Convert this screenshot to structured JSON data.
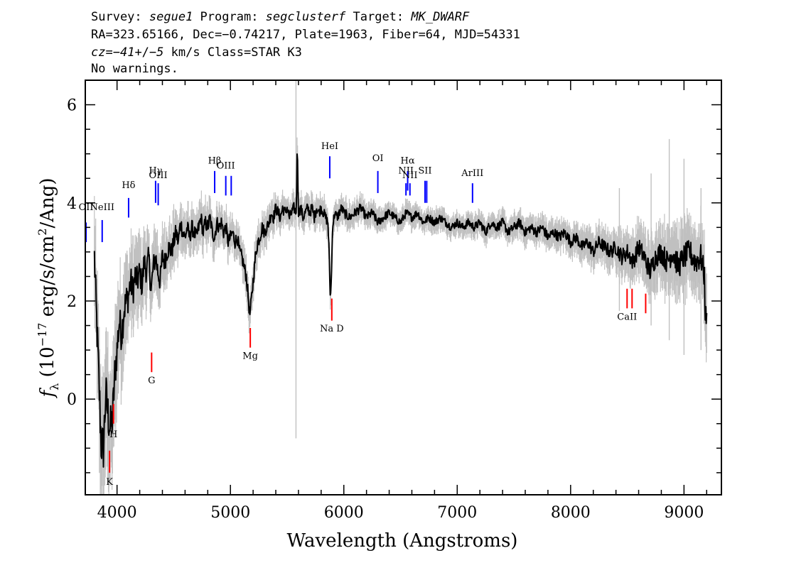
{
  "header": {
    "line1": [
      {
        "t": "Survey: ",
        "i": false
      },
      {
        "t": "segue1",
        "i": true
      },
      {
        "t": " Program: ",
        "i": false
      },
      {
        "t": "segclusterf",
        "i": true
      },
      {
        "t": " Target: ",
        "i": false
      },
      {
        "t": "MK_DWARF",
        "i": true
      }
    ],
    "line2": "RA=323.65166, Dec=−0.74217, Plate=1963, Fiber=64, MJD=54331",
    "line3": [
      {
        "t": "cz=",
        "i": true
      },
      {
        "t": "−41",
        "i": true
      },
      {
        "t": "+/−",
        "i": false
      },
      {
        "t": "5",
        "i": true
      },
      {
        "t": " km/s Class=STAR K3",
        "i": false
      }
    ],
    "line4": "No warnings."
  },
  "chart_data": {
    "type": "line",
    "xlabel": "Wavelength (Angstroms)",
    "ylabel": "f_λ (10^-17 erg/s/cm^2/Ang)",
    "xlim": [
      3720,
      9330
    ],
    "ylim": [
      -1.95,
      6.5
    ],
    "xticks": [
      4000,
      5000,
      6000,
      7000,
      8000,
      9000
    ],
    "yticks": [
      0,
      2,
      4,
      6
    ],
    "colors": {
      "flux": "#000000",
      "error_band": "#c0c0c0",
      "emission": "#0000ff",
      "absorption": "#ff0000"
    },
    "series": [
      {
        "role": "flux",
        "points": [
          [
            3800,
            2.9
          ],
          [
            3820,
            1.6
          ],
          [
            3840,
            0.4
          ],
          [
            3860,
            -0.9
          ],
          [
            3880,
            -1.0
          ],
          [
            3900,
            0.1
          ],
          [
            3920,
            -0.3
          ],
          [
            3940,
            -0.6
          ],
          [
            3960,
            -0.4
          ],
          [
            3980,
            0.5
          ],
          [
            4000,
            1.0
          ],
          [
            4020,
            1.6
          ],
          [
            4040,
            1.3
          ],
          [
            4060,
            1.8
          ],
          [
            4080,
            2.0
          ],
          [
            4100,
            2.1
          ],
          [
            4120,
            2.4
          ],
          [
            4140,
            2.2
          ],
          [
            4160,
            2.5
          ],
          [
            4180,
            2.4
          ],
          [
            4200,
            2.6
          ],
          [
            4220,
            2.3
          ],
          [
            4240,
            2.8
          ],
          [
            4260,
            2.6
          ],
          [
            4280,
            2.9
          ],
          [
            4300,
            2.2
          ],
          [
            4320,
            2.7
          ],
          [
            4340,
            2.9
          ],
          [
            4360,
            2.6
          ],
          [
            4380,
            2.4
          ],
          [
            4400,
            2.9
          ],
          [
            4420,
            2.8
          ],
          [
            4440,
            3.0
          ],
          [
            4460,
            3.1
          ],
          [
            4480,
            3.0
          ],
          [
            4500,
            3.2
          ],
          [
            4520,
            3.4
          ],
          [
            4540,
            3.2
          ],
          [
            4560,
            3.6
          ],
          [
            4580,
            3.4
          ],
          [
            4600,
            3.3
          ],
          [
            4620,
            3.5
          ],
          [
            4640,
            3.3
          ],
          [
            4660,
            3.5
          ],
          [
            4680,
            3.4
          ],
          [
            4700,
            3.3
          ],
          [
            4720,
            3.5
          ],
          [
            4740,
            3.7
          ],
          [
            4760,
            3.4
          ],
          [
            4780,
            3.6
          ],
          [
            4800,
            3.5
          ],
          [
            4820,
            3.7
          ],
          [
            4840,
            3.4
          ],
          [
            4860,
            3.3
          ],
          [
            4880,
            3.6
          ],
          [
            4900,
            3.5
          ],
          [
            4920,
            3.6
          ],
          [
            4940,
            3.4
          ],
          [
            4960,
            3.5
          ],
          [
            4980,
            3.2
          ],
          [
            5000,
            3.3
          ],
          [
            5020,
            3.4
          ],
          [
            5040,
            3.2
          ],
          [
            5060,
            3.3
          ],
          [
            5080,
            3.0
          ],
          [
            5100,
            2.9
          ],
          [
            5120,
            2.7
          ],
          [
            5140,
            2.5
          ],
          [
            5160,
            2.0
          ],
          [
            5170,
            1.7
          ],
          [
            5180,
            1.9
          ],
          [
            5200,
            2.4
          ],
          [
            5220,
            2.9
          ],
          [
            5240,
            3.2
          ],
          [
            5260,
            3.3
          ],
          [
            5280,
            3.5
          ],
          [
            5300,
            3.4
          ],
          [
            5320,
            3.5
          ],
          [
            5340,
            3.6
          ],
          [
            5360,
            3.8
          ],
          [
            5380,
            3.7
          ],
          [
            5400,
            3.9
          ],
          [
            5420,
            3.8
          ],
          [
            5440,
            3.7
          ],
          [
            5460,
            3.9
          ],
          [
            5480,
            3.8
          ],
          [
            5500,
            3.9
          ],
          [
            5520,
            3.7
          ],
          [
            5540,
            3.8
          ],
          [
            5560,
            3.9
          ],
          [
            5580,
            3.8
          ],
          [
            5590,
            5.2
          ],
          [
            5600,
            3.8
          ],
          [
            5620,
            3.9
          ],
          [
            5640,
            3.7
          ],
          [
            5660,
            3.8
          ],
          [
            5680,
            3.9
          ],
          [
            5700,
            3.8
          ],
          [
            5720,
            3.9
          ],
          [
            5740,
            3.7
          ],
          [
            5760,
            3.9
          ],
          [
            5780,
            3.8
          ],
          [
            5800,
            3.9
          ],
          [
            5820,
            3.8
          ],
          [
            5840,
            3.7
          ],
          [
            5860,
            3.6
          ],
          [
            5870,
            3.0
          ],
          [
            5880,
            2.1
          ],
          [
            5890,
            2.4
          ],
          [
            5900,
            3.5
          ],
          [
            5920,
            3.8
          ],
          [
            5940,
            3.7
          ],
          [
            5960,
            3.8
          ],
          [
            5980,
            3.9
          ],
          [
            6000,
            3.8
          ],
          [
            6050,
            3.7
          ],
          [
            6100,
            3.8
          ],
          [
            6150,
            3.9
          ],
          [
            6200,
            3.7
          ],
          [
            6250,
            3.8
          ],
          [
            6300,
            3.6
          ],
          [
            6350,
            3.7
          ],
          [
            6400,
            3.8
          ],
          [
            6450,
            3.7
          ],
          [
            6500,
            3.6
          ],
          [
            6550,
            3.8
          ],
          [
            6600,
            3.7
          ],
          [
            6650,
            3.8
          ],
          [
            6700,
            3.6
          ],
          [
            6750,
            3.7
          ],
          [
            6800,
            3.6
          ],
          [
            6850,
            3.7
          ],
          [
            6900,
            3.6
          ],
          [
            6950,
            3.5
          ],
          [
            7000,
            3.6
          ],
          [
            7050,
            3.5
          ],
          [
            7100,
            3.6
          ],
          [
            7150,
            3.5
          ],
          [
            7200,
            3.6
          ],
          [
            7250,
            3.4
          ],
          [
            7300,
            3.6
          ],
          [
            7350,
            3.5
          ],
          [
            7400,
            3.6
          ],
          [
            7450,
            3.4
          ],
          [
            7500,
            3.5
          ],
          [
            7550,
            3.6
          ],
          [
            7600,
            3.4
          ],
          [
            7650,
            3.5
          ],
          [
            7700,
            3.4
          ],
          [
            7750,
            3.5
          ],
          [
            7800,
            3.3
          ],
          [
            7850,
            3.4
          ],
          [
            7900,
            3.3
          ],
          [
            7950,
            3.4
          ],
          [
            8000,
            3.2
          ],
          [
            8050,
            3.3
          ],
          [
            8100,
            3.1
          ],
          [
            8150,
            3.2
          ],
          [
            8200,
            3.0
          ],
          [
            8250,
            3.2
          ],
          [
            8300,
            3.1
          ],
          [
            8350,
            3.0
          ],
          [
            8400,
            3.1
          ],
          [
            8450,
            2.9
          ],
          [
            8500,
            3.0
          ],
          [
            8550,
            2.8
          ],
          [
            8600,
            3.1
          ],
          [
            8650,
            2.9
          ],
          [
            8700,
            2.6
          ],
          [
            8750,
            2.9
          ],
          [
            8800,
            3.0
          ],
          [
            8850,
            2.8
          ],
          [
            8900,
            3.0
          ],
          [
            8950,
            2.7
          ],
          [
            9000,
            2.9
          ],
          [
            9050,
            3.0
          ],
          [
            9100,
            2.8
          ],
          [
            9150,
            2.9
          ],
          [
            9180,
            2.5
          ],
          [
            9190,
            1.6
          ],
          [
            9200,
            1.8
          ]
        ]
      },
      {
        "role": "error_band",
        "points": [
          [
            3800,
            0.7
          ],
          [
            3850,
            0.9
          ],
          [
            3900,
            0.9
          ],
          [
            3950,
            0.8
          ],
          [
            4000,
            0.7
          ],
          [
            4100,
            0.6
          ],
          [
            4200,
            0.5
          ],
          [
            4300,
            0.45
          ],
          [
            4400,
            0.4
          ],
          [
            4500,
            0.35
          ],
          [
            4600,
            0.3
          ],
          [
            4800,
            0.28
          ],
          [
            5000,
            0.25
          ],
          [
            5200,
            0.25
          ],
          [
            5400,
            0.22
          ],
          [
            5600,
            0.2
          ],
          [
            5800,
            0.2
          ],
          [
            6000,
            0.18
          ],
          [
            6500,
            0.15
          ],
          [
            7000,
            0.15
          ],
          [
            7500,
            0.17
          ],
          [
            8000,
            0.2
          ],
          [
            8300,
            0.25
          ],
          [
            8600,
            0.35
          ],
          [
            8900,
            0.45
          ],
          [
            9200,
            0.5
          ]
        ]
      }
    ],
    "spikes": [
      [
        5578,
        -0.8,
        6.5
      ],
      [
        8870,
        1.2,
        5.3
      ],
      [
        9000,
        0.9,
        4.9
      ],
      [
        8710,
        1.5,
        4.6
      ],
      [
        8430,
        1.8,
        4.3
      ],
      [
        9150,
        1.0,
        4.3
      ]
    ],
    "lines": [
      {
        "label": "OII",
        "x": 3727,
        "y0": 3.2,
        "y1": 3.6,
        "ly": 3.85,
        "kind": "emission"
      },
      {
        "label": "NeIII",
        "x": 3869,
        "y0": 3.2,
        "y1": 3.65,
        "ly": 3.85,
        "kind": "emission"
      },
      {
        "label": "Hδ",
        "x": 4102,
        "y0": 3.7,
        "y1": 4.1,
        "ly": 4.3,
        "kind": "emission"
      },
      {
        "label": "Hγ",
        "x": 4340,
        "y0": 4.0,
        "y1": 4.45,
        "ly": 4.6,
        "kind": "emission"
      },
      {
        "label": "OIII",
        "x": 4363,
        "y0": 3.95,
        "y1": 4.4,
        "ly": 4.5,
        "kind": "emission"
      },
      {
        "label": "Hβ",
        "x": 4861,
        "y0": 4.2,
        "y1": 4.65,
        "ly": 4.8,
        "kind": "emission"
      },
      {
        "label": "OIII",
        "x": 4959,
        "y0": 4.15,
        "y1": 4.55,
        "ly": 4.7,
        "kind": "emission"
      },
      {
        "label": "",
        "x": 5007,
        "y0": 4.15,
        "y1": 4.55,
        "ly": 4.7,
        "kind": "emission"
      },
      {
        "label": "HeI",
        "x": 5876,
        "y0": 4.5,
        "y1": 4.95,
        "ly": 5.1,
        "kind": "emission"
      },
      {
        "label": "OI",
        "x": 6300,
        "y0": 4.2,
        "y1": 4.65,
        "ly": 4.85,
        "kind": "emission"
      },
      {
        "label": "NII",
        "x": 6548,
        "y0": 4.15,
        "y1": 4.4,
        "ly": 4.6,
        "kind": "emission"
      },
      {
        "label": "Hα",
        "x": 6563,
        "y0": 4.25,
        "y1": 4.65,
        "ly": 4.8,
        "kind": "emission"
      },
      {
        "label": "NII",
        "x": 6583,
        "y0": 4.15,
        "y1": 4.4,
        "ly": 4.5,
        "kind": "emission"
      },
      {
        "label": "SII",
        "x": 6716,
        "y0": 4.0,
        "y1": 4.45,
        "ly": 4.6,
        "kind": "emission"
      },
      {
        "label": "",
        "x": 6731,
        "y0": 4.0,
        "y1": 4.45,
        "ly": 4.6,
        "kind": "emission"
      },
      {
        "label": "ArIII",
        "x": 7135,
        "y0": 4.0,
        "y1": 4.4,
        "ly": 4.55,
        "kind": "emission"
      },
      {
        "label": "K",
        "x": 3934,
        "y0": -1.5,
        "y1": -1.05,
        "ly": -1.75,
        "kind": "absorption"
      },
      {
        "label": "H",
        "x": 3969,
        "y0": -0.5,
        "y1": -0.1,
        "ly": -0.78,
        "kind": "absorption"
      },
      {
        "label": "G",
        "x": 4305,
        "y0": 0.55,
        "y1": 0.95,
        "ly": 0.32,
        "kind": "absorption"
      },
      {
        "label": "Mg",
        "x": 5175,
        "y0": 1.05,
        "y1": 1.45,
        "ly": 0.82,
        "kind": "absorption"
      },
      {
        "label": "Na D",
        "x": 5894,
        "y0": 1.6,
        "y1": 2.05,
        "ly": 1.38,
        "kind": "absorption"
      },
      {
        "label": "CaII",
        "x": 8498,
        "y0": 1.85,
        "y1": 2.25,
        "ly": 1.62,
        "kind": "absorption"
      },
      {
        "label": "",
        "x": 8542,
        "y0": 1.85,
        "y1": 2.25,
        "ly": 1.62,
        "kind": "absorption"
      },
      {
        "label": "",
        "x": 8662,
        "y0": 1.75,
        "y1": 2.15,
        "ly": 1.62,
        "kind": "absorption"
      }
    ]
  }
}
